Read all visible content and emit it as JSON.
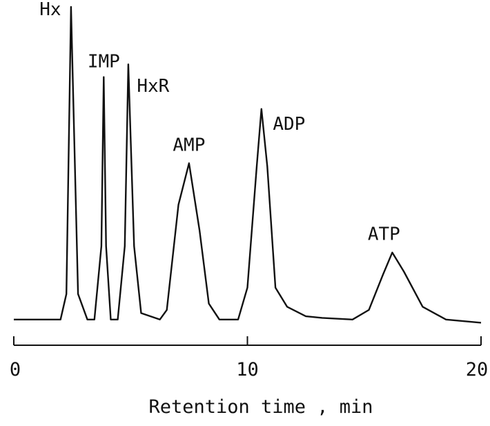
{
  "chart_data": {
    "type": "line",
    "title": "",
    "xlabel": "Retention time , min",
    "ylabel": "",
    "xlim": [
      0,
      20
    ],
    "x_ticks": [
      "0",
      "10",
      "20"
    ],
    "grid": false,
    "legend": "none",
    "line_color": "#111111",
    "series": [
      {
        "points": [
          [
            0,
            0.02
          ],
          [
            2.0,
            0.02
          ],
          [
            2.25,
            0.1
          ],
          [
            2.45,
            1.0
          ],
          [
            2.75,
            0.1
          ],
          [
            3.15,
            0.02
          ],
          [
            3.45,
            0.02
          ],
          [
            3.75,
            0.25
          ],
          [
            3.85,
            0.78
          ],
          [
            3.95,
            0.25
          ],
          [
            4.15,
            0.02
          ],
          [
            4.45,
            0.02
          ],
          [
            4.75,
            0.25
          ],
          [
            4.9,
            0.82
          ],
          [
            5.15,
            0.25
          ],
          [
            5.45,
            0.04
          ],
          [
            6.25,
            0.02
          ],
          [
            6.55,
            0.05
          ],
          [
            7.05,
            0.38
          ],
          [
            7.5,
            0.51
          ],
          [
            7.95,
            0.3
          ],
          [
            8.35,
            0.07
          ],
          [
            8.8,
            0.02
          ],
          [
            9.6,
            0.02
          ],
          [
            10.0,
            0.12
          ],
          [
            10.4,
            0.5
          ],
          [
            10.6,
            0.68
          ],
          [
            10.85,
            0.5
          ],
          [
            11.2,
            0.12
          ],
          [
            11.7,
            0.06
          ],
          [
            12.5,
            0.03
          ],
          [
            13.2,
            0.025
          ],
          [
            14.5,
            0.02
          ],
          [
            15.2,
            0.05
          ],
          [
            15.8,
            0.16
          ],
          [
            16.2,
            0.23
          ],
          [
            16.7,
            0.17
          ],
          [
            17.5,
            0.06
          ],
          [
            18.5,
            0.02
          ],
          [
            20.0,
            0.01
          ]
        ]
      }
    ],
    "peaks": [
      {
        "label": "Hx",
        "x": 2.45
      },
      {
        "label": "IMP",
        "x": 3.85
      },
      {
        "label": "HxR",
        "x": 4.9
      },
      {
        "label": "AMP",
        "x": 7.5
      },
      {
        "label": "ADP",
        "x": 10.6
      },
      {
        "label": "ATP",
        "x": 16.2
      }
    ]
  }
}
